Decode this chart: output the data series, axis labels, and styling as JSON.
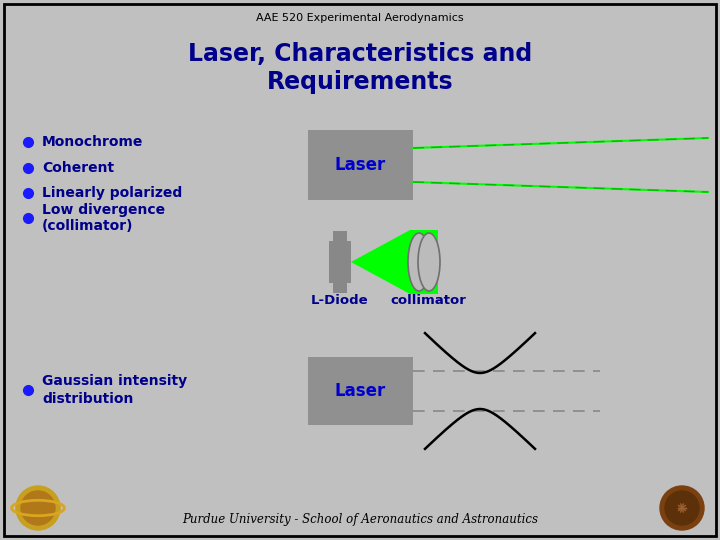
{
  "title_small": "AAE 520 Experimental Aerodynamics",
  "title_large": "Laser, Characteristics and\nRequirements",
  "title_color": "#00008B",
  "title_small_color": "#000000",
  "bg_color": "#C0C0C0",
  "slide_border_color": "#000000",
  "bullet_color": "#1a1aff",
  "bullet_text_color": "#00008B",
  "bullets": [
    "Monochrome",
    "Coherent",
    "Linearly polarized",
    "Low divergence\n(collimator)"
  ],
  "bullet5": "Gaussian intensity\ndistribution",
  "laser_box_color": "#909090",
  "laser_text_color": "#0000CC",
  "green_line_color": "#00FF00",
  "dashed_green_color": "#00BB00",
  "collimator_color": "#A8A8A8",
  "ldiode_color": "#888888",
  "gaussian_curve_color": "#000000",
  "dashed_gray_color": "#888888",
  "footer_text": "Purdue University - School of Aeronautics and Astronautics",
  "footer_color": "#000000"
}
